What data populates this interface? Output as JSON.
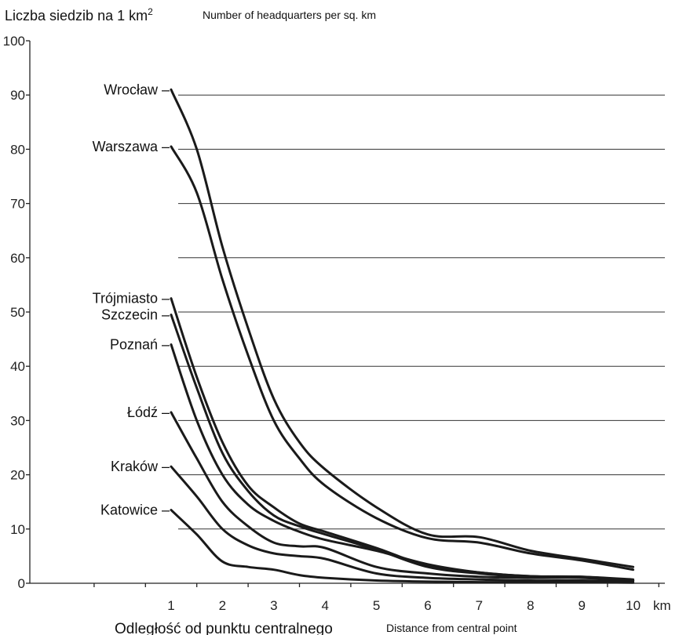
{
  "chart_data": {
    "type": "line",
    "ylabel": "Liczba siedzib na 1 km",
    "ylabel_sup": "2",
    "ylabel_en": "Number of headquarters per sq. km",
    "xlabel": "Odległość od punktu centralnego",
    "xlabel_en": "Distance from central point",
    "x_unit": "km",
    "ylim": [
      0,
      100
    ],
    "xlim": [
      0,
      10
    ],
    "y_ticks": [
      0,
      10,
      20,
      30,
      40,
      50,
      60,
      70,
      80,
      90,
      100
    ],
    "x_ticks": [
      1,
      2,
      3,
      4,
      5,
      6,
      7,
      8,
      9,
      10
    ],
    "grid": "horizontal",
    "x": [
      1,
      1.5,
      2,
      2.5,
      3,
      3.5,
      4,
      5,
      6,
      7,
      8,
      9,
      10
    ],
    "series": [
      {
        "name": "Wrocław",
        "values": [
          91,
          80,
          62,
          47,
          34,
          26,
          21,
          14,
          9,
          8.5,
          6,
          4.5,
          3
        ]
      },
      {
        "name": "Warszawa",
        "values": [
          80.5,
          72,
          56,
          42,
          30,
          23,
          18,
          12,
          8.3,
          7.5,
          5.5,
          4.2,
          2.5
        ]
      },
      {
        "name": "Trójmiasto",
        "values": [
          52.5,
          38,
          26,
          18,
          14,
          11,
          9.5,
          6.5,
          3.2,
          2,
          1.3,
          1.2,
          0.7
        ]
      },
      {
        "name": "Szczecin",
        "values": [
          49.5,
          36,
          24,
          17,
          12.5,
          10.5,
          9,
          6.2,
          3,
          1.8,
          1.2,
          1.2,
          0.5
        ]
      },
      {
        "name": "Poznań",
        "values": [
          44,
          30,
          20,
          14.5,
          11.5,
          9.5,
          8,
          6,
          3.5,
          2,
          1.3,
          1.1,
          0.5
        ]
      },
      {
        "name": "Łódź",
        "values": [
          31.5,
          23,
          15,
          10.5,
          7.5,
          6.8,
          6.5,
          3,
          1.8,
          1.2,
          1,
          1,
          0.5
        ]
      },
      {
        "name": "Kraków",
        "values": [
          21.5,
          16,
          10,
          7,
          5.5,
          5,
          4.5,
          1.8,
          1,
          0.7,
          0.5,
          0.5,
          0.3
        ]
      },
      {
        "name": "Katowice",
        "values": [
          13.5,
          9,
          4,
          3,
          2.5,
          1.5,
          1,
          0.5,
          0.3,
          0.2,
          0.2,
          0.2,
          0.1
        ]
      }
    ]
  }
}
